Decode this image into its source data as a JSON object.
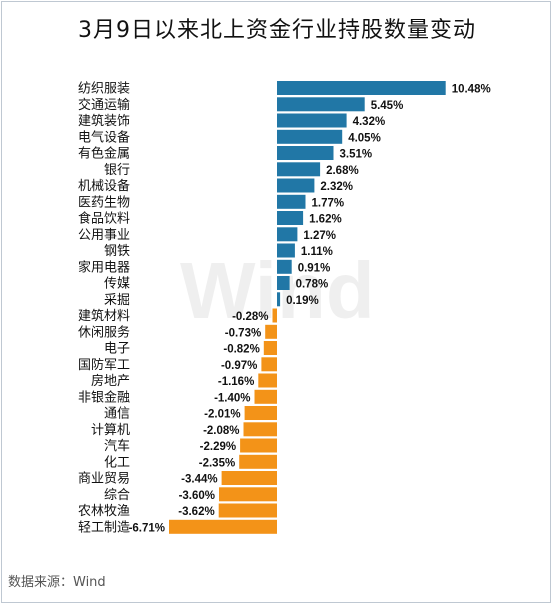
{
  "title": "3月9日以来北上资金行业持股数量变动",
  "source": "数据来源：Wind",
  "watermark": "Wind",
  "colors": {
    "positive": "#2177a6",
    "negative": "#f39318"
  },
  "chart_data": {
    "type": "bar",
    "orientation": "horizontal",
    "unit": "%",
    "categories": [
      "纺织服装",
      "交通运输",
      "建筑装饰",
      "电气设备",
      "有色金属",
      "银行",
      "机械设备",
      "医药生物",
      "食品饮料",
      "公用事业",
      "钢铁",
      "家用电器",
      "传媒",
      "采掘",
      "建筑材料",
      "休闲服务",
      "电子",
      "国防军工",
      "房地产",
      "非银金融",
      "通信",
      "计算机",
      "汽车",
      "化工",
      "商业贸易",
      "综合",
      "农林牧渔",
      "轻工制造"
    ],
    "values": [
      10.48,
      5.45,
      4.32,
      4.05,
      3.51,
      2.68,
      2.32,
      1.77,
      1.62,
      1.27,
      1.11,
      0.91,
      0.78,
      0.19,
      -0.28,
      -0.73,
      -0.82,
      -0.97,
      -1.16,
      -1.4,
      -2.01,
      -2.08,
      -2.29,
      -2.35,
      -3.44,
      -3.6,
      -3.62,
      -6.71
    ],
    "labels": [
      "10.48%",
      "5.45%",
      "4.32%",
      "4.05%",
      "3.51%",
      "2.68%",
      "2.32%",
      "1.77%",
      "1.62%",
      "1.27%",
      "1.11%",
      "0.91%",
      "0.78%",
      "0.19%",
      "-0.28%",
      "-0.73%",
      "-0.82%",
      "-0.97%",
      "-1.16%",
      "-1.40%",
      "-2.01%",
      "-2.08%",
      "-2.29%",
      "-2.35%",
      "-3.44%",
      "-3.60%",
      "-3.62%",
      "-6.71%"
    ],
    "title": "3月9日以来北上资金行业持股数量变动",
    "xlabel": "",
    "ylabel": "",
    "grid": false,
    "legend": "none"
  }
}
